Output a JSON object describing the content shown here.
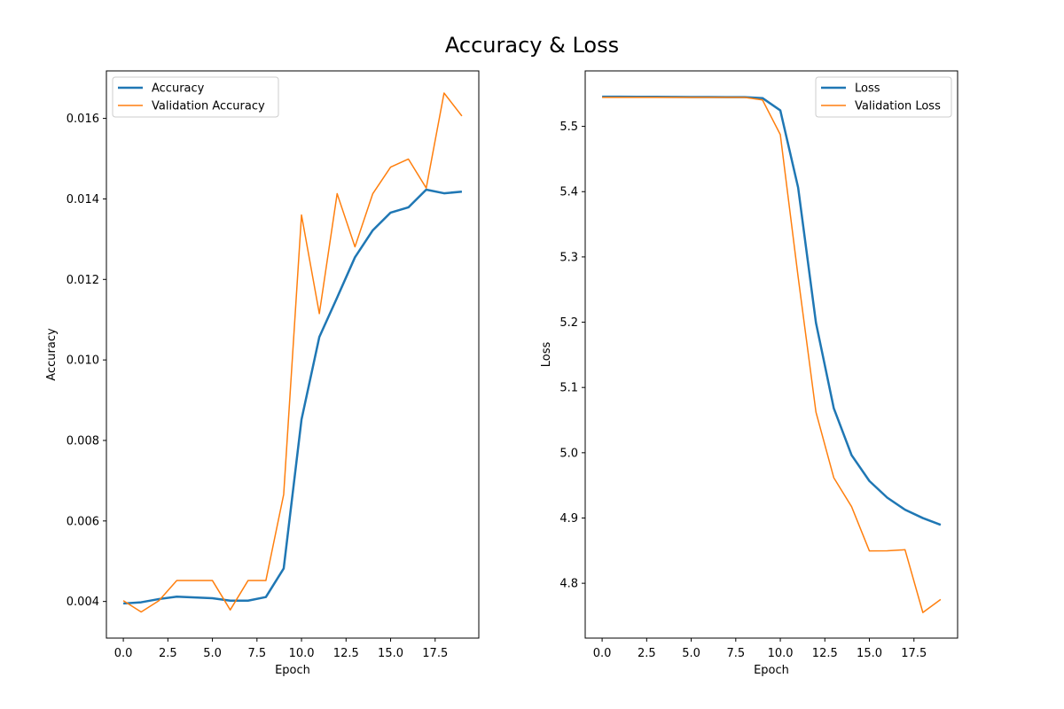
{
  "figure": {
    "title": "Accuracy & Loss"
  },
  "chart_data": [
    {
      "type": "line",
      "xlabel": "Epoch",
      "ylabel": "Accuracy",
      "xlim": [
        -0.95,
        19.95
      ],
      "ylim": [
        0.00309,
        0.01718
      ],
      "xticks": [
        0.0,
        2.5,
        5.0,
        7.5,
        10.0,
        12.5,
        15.0,
        17.5
      ],
      "xtick_labels": [
        "0.0",
        "2.5",
        "5.0",
        "7.5",
        "10.0",
        "12.5",
        "15.0",
        "17.5"
      ],
      "yticks": [
        0.004,
        0.006,
        0.008,
        0.01,
        0.012,
        0.014,
        0.016
      ],
      "ytick_labels": [
        "0.004",
        "0.006",
        "0.008",
        "0.010",
        "0.012",
        "0.014",
        "0.016"
      ],
      "grid": false,
      "legend_position": "upper-left",
      "x": [
        0,
        1,
        2,
        3,
        4,
        5,
        6,
        7,
        8,
        9,
        10,
        11,
        12,
        13,
        14,
        15,
        16,
        17,
        18,
        19
      ],
      "series": [
        {
          "name": "Accuracy",
          "color": "#1f77b4",
          "width": 2.5,
          "values": [
            0.00395,
            0.00398,
            0.00406,
            0.00412,
            0.0041,
            0.00408,
            0.00402,
            0.00402,
            0.00411,
            0.00482,
            0.00852,
            0.01057,
            0.01155,
            0.01255,
            0.01322,
            0.01366,
            0.01379,
            0.01423,
            0.01414,
            0.01418
          ]
        },
        {
          "name": "Validation Accuracy",
          "color": "#ff7f0e",
          "width": 1.5,
          "values": [
            0.00402,
            0.00374,
            0.00402,
            0.00452,
            0.00452,
            0.00452,
            0.00379,
            0.00452,
            0.00452,
            0.00666,
            0.0136,
            0.01115,
            0.01413,
            0.01281,
            0.01413,
            0.01479,
            0.01499,
            0.01427,
            0.01663,
            0.01606
          ]
        }
      ]
    },
    {
      "type": "line",
      "xlabel": "Epoch",
      "ylabel": "Loss",
      "xlim": [
        -0.95,
        19.95
      ],
      "ylim": [
        4.716,
        5.585
      ],
      "xticks": [
        0.0,
        2.5,
        5.0,
        7.5,
        10.0,
        12.5,
        15.0,
        17.5
      ],
      "xtick_labels": [
        "0.0",
        "2.5",
        "5.0",
        "7.5",
        "10.0",
        "12.5",
        "15.0",
        "17.5"
      ],
      "yticks": [
        4.8,
        4.9,
        5.0,
        5.1,
        5.2,
        5.3,
        5.4,
        5.5
      ],
      "ytick_labels": [
        "4.8",
        "4.9",
        "5.0",
        "5.1",
        "5.2",
        "5.3",
        "5.4",
        "5.5"
      ],
      "grid": false,
      "legend_position": "upper-right",
      "x": [
        0,
        1,
        2,
        3,
        4,
        5,
        6,
        7,
        8,
        9,
        10,
        11,
        12,
        13,
        14,
        15,
        16,
        17,
        18,
        19
      ],
      "series": [
        {
          "name": "Loss",
          "color": "#1f77b4",
          "width": 2.5,
          "values": [
            5.5455,
            5.5454,
            5.5453,
            5.5452,
            5.5451,
            5.545,
            5.5449,
            5.5448,
            5.5447,
            5.5433,
            5.5245,
            5.4063,
            5.1992,
            5.0683,
            4.9963,
            4.9567,
            4.9312,
            4.9127,
            4.8999,
            4.8896
          ]
        },
        {
          "name": "Validation Loss",
          "color": "#ff7f0e",
          "width": 1.5,
          "values": [
            5.5445,
            5.5445,
            5.5445,
            5.5445,
            5.5445,
            5.5445,
            5.5445,
            5.5445,
            5.5445,
            5.5405,
            5.4874,
            5.2695,
            5.0623,
            4.9618,
            4.9174,
            4.8495,
            4.8497,
            4.8514,
            4.7552,
            4.7752
          ]
        }
      ]
    }
  ]
}
